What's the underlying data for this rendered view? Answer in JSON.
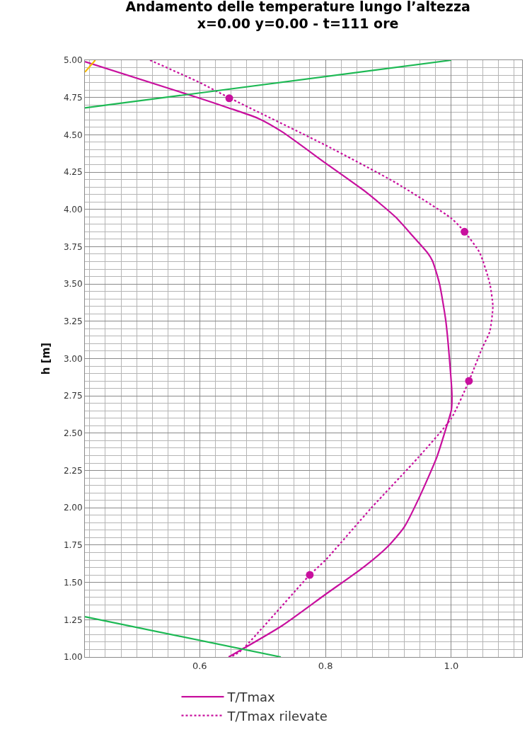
{
  "chart_data": {
    "type": "line",
    "title": "Andamento delle temperature lungo l’altezza\nx=0.00 y=0.00 - t=111 ore",
    "ylabel": "h [m]",
    "xlim": [
      0.4175,
      1.1125
    ],
    "xticks": [
      0.6,
      0.8,
      {
        "value": 1.0,
        "label": "1.0"
      }
    ],
    "ylim": [
      1.0,
      5.0
    ],
    "yticks": [
      {
        "value": 1.0,
        "label": "1.00"
      },
      1.25,
      {
        "value": 1.5,
        "label": "1.50"
      },
      1.75,
      {
        "value": 2.0,
        "label": "2.00"
      },
      2.25,
      {
        "value": 2.5,
        "label": "2.50"
      },
      2.75,
      {
        "value": 3.0,
        "label": "3.00"
      },
      3.25,
      {
        "value": 3.5,
        "label": "3.50"
      },
      3.75,
      {
        "value": 4.0,
        "label": "4.00"
      },
      4.25,
      {
        "value": 4.5,
        "label": "4.50"
      },
      4.75,
      {
        "value": 5.0,
        "label": "5.00"
      }
    ],
    "grid": true,
    "legend": "bottom",
    "series": [
      {
        "name": "T/Tmax",
        "color": "#c8109e",
        "line_style": "solid",
        "marker": "none",
        "x": [
          0.4175,
          0.6,
          0.646,
          0.693,
          0.731,
          0.8,
          0.863,
          0.911,
          0.939,
          0.962,
          0.97,
          0.981,
          0.991,
          0.997,
          1.001,
          1.0,
          0.991,
          0.977,
          0.948,
          0.925,
          0.899,
          0.863,
          0.8,
          0.731,
          0.646
        ],
        "values": [
          4.99,
          4.745,
          4.68,
          4.61,
          4.52,
          4.31,
          4.12,
          3.95,
          3.82,
          3.71,
          3.655,
          3.505,
          3.26,
          3.0,
          2.75,
          2.655,
          2.525,
          2.34,
          2.06,
          1.87,
          1.74,
          1.61,
          1.42,
          1.21,
          1.0
        ]
      },
      {
        "name": "T/Tmax rilevate",
        "color": "#c8109e",
        "line_style": "dotted",
        "marker": "none",
        "x": [
          0.521,
          0.6,
          0.646,
          0.8,
          0.911,
          1.0,
          1.021,
          1.045,
          1.061,
          1.066,
          1.061,
          1.049,
          1.028,
          1.0,
          0.948,
          0.873,
          0.8,
          0.775,
          0.665,
          0.649
        ],
        "values": [
          5.0,
          4.85,
          4.75,
          4.43,
          4.18,
          3.94,
          3.85,
          3.71,
          3.505,
          3.35,
          3.18,
          3.07,
          2.85,
          2.6,
          2.34,
          2.0,
          1.65,
          1.55,
          1.04,
          1.0
        ]
      },
      {
        "type": "scatter",
        "color": "#c8109e",
        "marker": "circle",
        "x": [
          0.647,
          1.021,
          1.028,
          0.775
        ],
        "values": [
          4.745,
          3.85,
          2.85,
          1.55
        ]
      },
      {
        "color": "#1db954",
        "line_style": "solid",
        "marker": "none",
        "x": [
          0.4175,
          1.0
        ],
        "values": [
          4.68,
          5.0
        ]
      },
      {
        "color": "#1db954",
        "line_style": "solid",
        "marker": "none",
        "x": [
          0.4175,
          0.729
        ],
        "values": [
          1.27,
          1.0
        ]
      },
      {
        "color": "#f5b800",
        "line_style": "solid",
        "marker": "none",
        "x": [
          0.4175,
          0.434
        ],
        "values": [
          4.92,
          5.0
        ]
      }
    ]
  }
}
